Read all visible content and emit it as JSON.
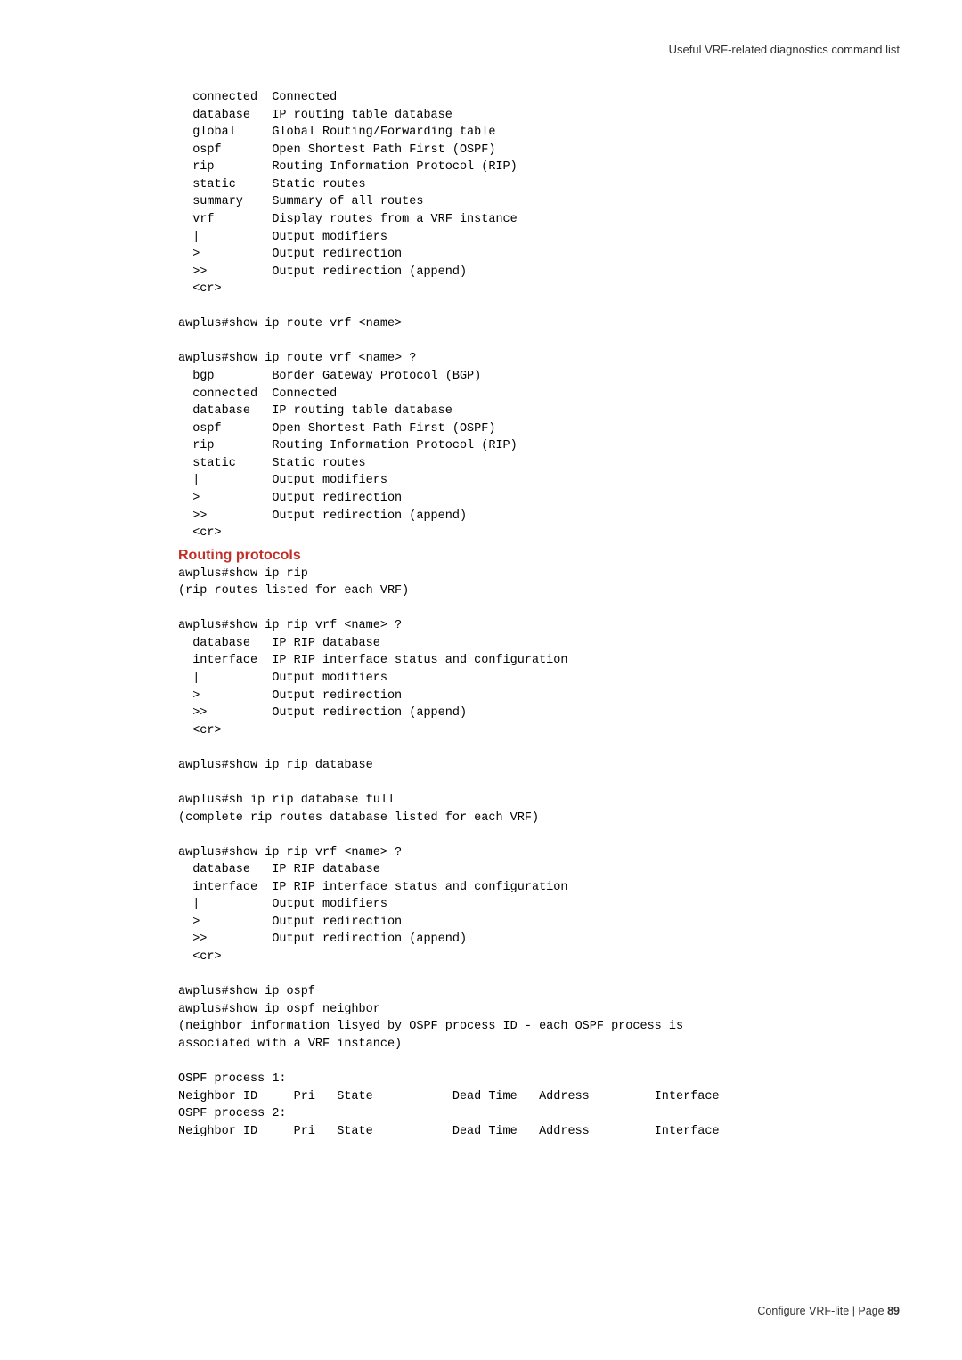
{
  "header": {
    "title": "Useful VRF-related diagnostics command list"
  },
  "blocks": {
    "block1": "  connected  Connected\n  database   IP routing table database\n  global     Global Routing/Forwarding table\n  ospf       Open Shortest Path First (OSPF)\n  rip        Routing Information Protocol (RIP)\n  static     Static routes\n  summary    Summary of all routes\n  vrf        Display routes from a VRF instance\n  |          Output modifiers\n  >          Output redirection\n  >>         Output redirection (append)\n  <cr>\n\nawplus#show ip route vrf <name>\n\nawplus#show ip route vrf <name> ?\n  bgp        Border Gateway Protocol (BGP)\n  connected  Connected\n  database   IP routing table database\n  ospf       Open Shortest Path First (OSPF)\n  rip        Routing Information Protocol (RIP)\n  static     Static routes\n  |          Output modifiers\n  >          Output redirection\n  >>         Output redirection (append)\n  <cr>",
    "heading": "Routing protocols",
    "block2": "awplus#show ip rip\n(rip routes listed for each VRF)\n\nawplus#show ip rip vrf <name> ?\n  database   IP RIP database\n  interface  IP RIP interface status and configuration\n  |          Output modifiers\n  >          Output redirection\n  >>         Output redirection (append)\n  <cr>\n\nawplus#show ip rip database\n\nawplus#sh ip rip database full\n(complete rip routes database listed for each VRF)\n\nawplus#show ip rip vrf <name> ?\n  database   IP RIP database\n  interface  IP RIP interface status and configuration\n  |          Output modifiers\n  >          Output redirection\n  >>         Output redirection (append)\n  <cr>\n\nawplus#show ip ospf\nawplus#show ip ospf neighbor\n(neighbor information lisyed by OSPF process ID - each OSPF process is\nassociated with a VRF instance)\n\nOSPF process 1:\nNeighbor ID     Pri   State           Dead Time   Address         Interface\nOSPF process 2:\nNeighbor ID     Pri   State           Dead Time   Address         Interface"
  },
  "footer": {
    "text": "Configure VRF-lite | Page ",
    "page": "89"
  }
}
